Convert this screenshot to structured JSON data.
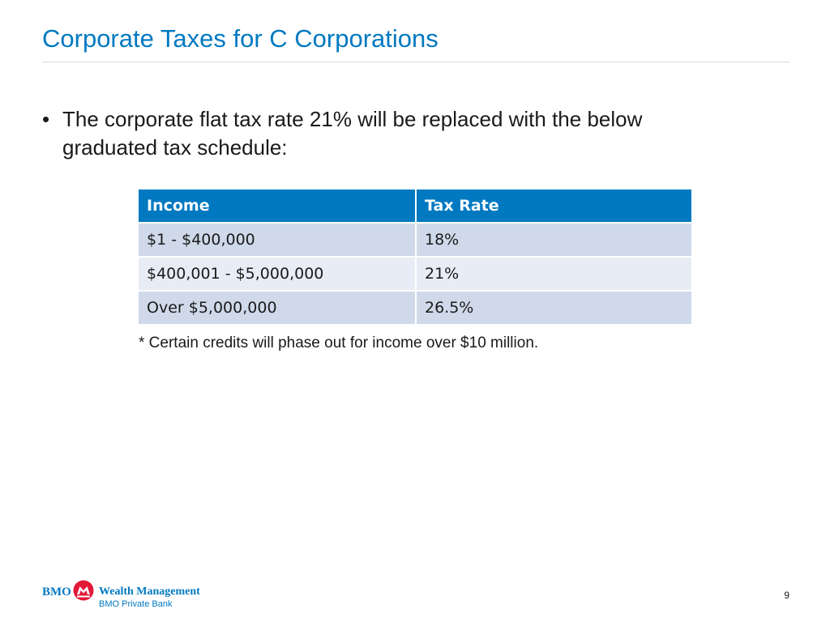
{
  "slide": {
    "title": "Corporate Taxes for C Corporations",
    "bullet": {
      "mark": "•",
      "text": "The corporate flat tax rate 21% will be replaced with the below graduated tax schedule:"
    },
    "table": {
      "headers": [
        "Income",
        "Tax Rate"
      ],
      "rows": [
        [
          "$1 - $400,000",
          "18%"
        ],
        [
          "$400,001 - $5,000,000",
          "21%"
        ],
        [
          "Over $5,000,000",
          "26.5%"
        ]
      ]
    },
    "footnote": "* Certain credits will phase out for income over $10 million.",
    "footer": {
      "logo_bmo": "BMO",
      "logo_brand": "Wealth Management",
      "logo_sub": "BMO Private Bank",
      "page_number": "9"
    }
  },
  "colors": {
    "accent": "#0079c1",
    "header_fill": "#0079c1",
    "row_dark": "#cfd9ea",
    "row_light": "#e8ecf5",
    "logo_red": "#e31837"
  },
  "icons": {
    "logo_mark": "bmo-roundel-icon"
  }
}
